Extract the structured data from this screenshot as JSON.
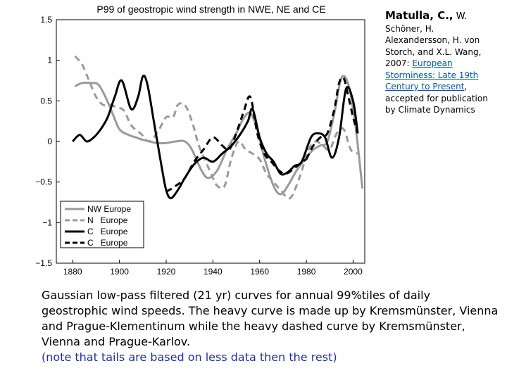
{
  "chart_data": {
    "type": "line",
    "title": "P99 of geostropic wind strength in NWE, NE and CE",
    "xlabel": "",
    "ylabel": "",
    "xlim": [
      1873,
      2005
    ],
    "ylim": [
      -1.5,
      1.5
    ],
    "xticks": [
      1880,
      1900,
      1920,
      1940,
      1960,
      1980,
      2000
    ],
    "yticks": [
      1.5,
      1,
      0.5,
      0,
      -0.5,
      -1,
      -1.5
    ],
    "ytick_labels": [
      "1.5",
      "1",
      "0.5",
      "0",
      "−0.5",
      "−1",
      "−1.5"
    ],
    "legend_position": "bottom-left",
    "series": [
      {
        "name": "NW Europe",
        "legend_label": "NW Europe",
        "color": "#9a9a9a",
        "dash": "solid",
        "width": 3,
        "x": [
          1881,
          1884,
          1888,
          1891,
          1894,
          1897,
          1900,
          1904,
          1907,
          1910,
          1913,
          1916,
          1920,
          1924,
          1928,
          1931,
          1935,
          1938,
          1942,
          1946,
          1950,
          1953,
          1956,
          1959,
          1962,
          1966,
          1969,
          1972,
          1976,
          1980,
          1983,
          1986,
          1989,
          1992,
          1995,
          1998,
          2001,
          2004
        ],
        "y": [
          0.68,
          0.72,
          0.72,
          0.7,
          0.55,
          0.35,
          0.15,
          0.08,
          0.05,
          0.02,
          0.0,
          -0.02,
          -0.02,
          0.0,
          0.0,
          -0.1,
          -0.35,
          -0.45,
          -0.35,
          -0.1,
          0.1,
          0.28,
          0.35,
          0.15,
          -0.2,
          -0.55,
          -0.65,
          -0.55,
          -0.35,
          -0.2,
          -0.1,
          -0.05,
          0.0,
          0.35,
          0.78,
          0.7,
          0.2,
          -0.58
        ]
      },
      {
        "name": "N Europe",
        "legend_label": "N   Europe",
        "color": "#9a9a9a",
        "dash": "dashed",
        "width": 3,
        "x": [
          1881,
          1884,
          1887,
          1890,
          1893,
          1896,
          1899,
          1902,
          1905,
          1909,
          1913,
          1917,
          1920,
          1923,
          1925,
          1928,
          1931,
          1934,
          1937,
          1940,
          1942,
          1945,
          1948,
          1951,
          1954,
          1957,
          1960,
          1963,
          1966,
          1969,
          1973,
          1977,
          1981,
          1984,
          1987,
          1990,
          1993,
          1996,
          1999,
          2002
        ],
        "y": [
          1.05,
          0.95,
          0.75,
          0.55,
          0.45,
          0.45,
          0.42,
          0.38,
          0.2,
          0.1,
          0.0,
          0.15,
          0.3,
          0.3,
          0.45,
          0.45,
          0.25,
          -0.05,
          -0.25,
          -0.45,
          -0.55,
          -0.55,
          -0.2,
          0.0,
          -0.1,
          -0.15,
          -0.22,
          -0.4,
          -0.5,
          -0.6,
          -0.7,
          -0.45,
          -0.1,
          0.0,
          -0.05,
          -0.1,
          0.1,
          0.15,
          -0.1,
          -0.15
        ]
      },
      {
        "name": "C Europe",
        "legend_label": "C   Europe",
        "color": "#000000",
        "dash": "solid",
        "width": 3,
        "x": [
          1880,
          1883,
          1886,
          1889,
          1892,
          1895,
          1898,
          1901,
          1905,
          1908,
          1910,
          1912,
          1915,
          1918,
          1920,
          1922,
          1925,
          1928,
          1932,
          1936,
          1940,
          1944,
          1948,
          1952,
          1955,
          1957,
          1960,
          1963,
          1966,
          1969,
          1972,
          1975,
          1978,
          1982,
          1985,
          1988,
          1991,
          1994,
          1997,
          2000,
          2002
        ],
        "y": [
          0.0,
          0.08,
          0.0,
          0.05,
          0.15,
          0.3,
          0.55,
          0.75,
          0.4,
          0.55,
          0.8,
          0.7,
          0.2,
          -0.3,
          -0.6,
          -0.7,
          -0.6,
          -0.45,
          -0.28,
          -0.2,
          -0.25,
          -0.15,
          -0.05,
          0.1,
          0.25,
          0.4,
          0.05,
          -0.15,
          -0.25,
          -0.4,
          -0.38,
          -0.3,
          -0.25,
          0.05,
          0.1,
          0.05,
          -0.2,
          0.05,
          0.65,
          0.5,
          0.1
        ]
      },
      {
        "name": "C Europe (Karlov)",
        "legend_label": "C   Europe",
        "color": "#000000",
        "dash": "dashed",
        "width": 3,
        "x": [
          1980,
          1983,
          1986,
          1989,
          1992,
          1994,
          1996,
          1998,
          2000,
          2002
        ],
        "y": [
          -0.22,
          -0.05,
          0.05,
          0.1,
          0.4,
          0.72,
          0.78,
          0.55,
          0.3,
          0.1
        ]
      },
      {
        "name": "C Europe (Karlov, early)",
        "legend_label": "",
        "color": "#000000",
        "dash": "dashed",
        "width": 3,
        "x": [
          1920,
          1924,
          1928,
          1932,
          1936,
          1940,
          1944,
          1947,
          1950,
          1953,
          1956,
          1959,
          1962,
          1965,
          1968,
          1971,
          1974,
          1977,
          1980
        ],
        "y": [
          -0.62,
          -0.55,
          -0.45,
          -0.25,
          -0.1,
          0.05,
          -0.05,
          -0.1,
          0.1,
          0.35,
          0.55,
          0.1,
          -0.15,
          -0.25,
          -0.35,
          -0.4,
          -0.35,
          -0.28,
          -0.22
        ]
      }
    ]
  },
  "citation": {
    "author_main": "Matulla, C.,",
    "author_w": " W.",
    "authors_rest": "Schöner, H. Alexandersson, H. von Storch, and X.L. Wang, 2007: ",
    "link_text": "European Storminess: Late 19th Century to Present",
    "tail": ", accepted for publication by Climate Dynamics"
  },
  "caption": {
    "text": "Gaussian low-pass filtered (21 yr) curves for annual  99%tiles of daily geostrophic wind speeds. The heavy curve is made up by Kremsmünster, Vienna and Prague-Klementinum while the heavy dashed curve by Kremsmünster, Vienna and Prague-Karlov.",
    "note": "(note that tails are based on less data then the rest)"
  }
}
